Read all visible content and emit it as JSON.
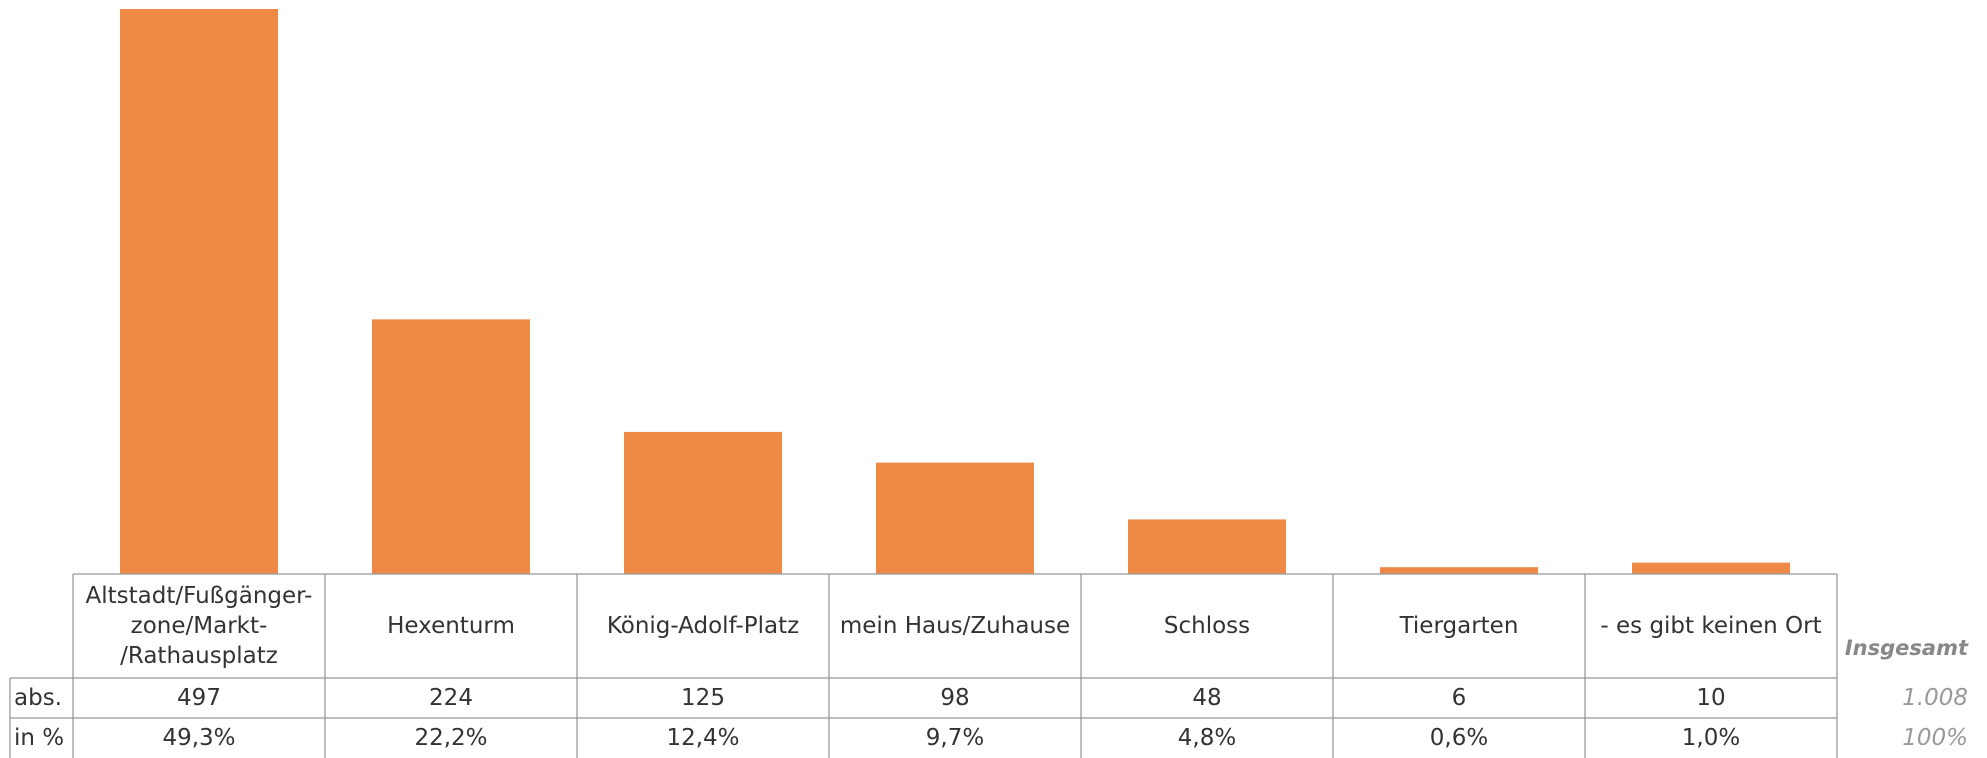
{
  "chart_data": {
    "type": "bar",
    "color": "#ee8a45",
    "categories": [
      "Altstadt/Fußgänger-\nzone/Markt-\n/Rathausplatz",
      "Hexenturm",
      "König-Adolf-Platz",
      "mein Haus/Zuhause",
      "Schloss",
      "Tiergarten",
      "- es gibt keinen Ort"
    ],
    "values": [
      497,
      224,
      125,
      98,
      48,
      6,
      10
    ],
    "row_labels": [
      "abs.",
      "in %"
    ],
    "percent_values": [
      49.3,
      22.2,
      12.4,
      9.7,
      4.8,
      0.6,
      1.0
    ],
    "percent_value_labels": [
      "49,3%",
      "22,2%",
      "12,4%",
      "9,7%",
      "4,8%",
      "0,6%",
      "1,0%"
    ],
    "total_title": "Insgesamt",
    "total": {
      "value": 1008,
      "label": "1.008"
    },
    "total_percent": {
      "value": 100,
      "label": "100%"
    }
  }
}
